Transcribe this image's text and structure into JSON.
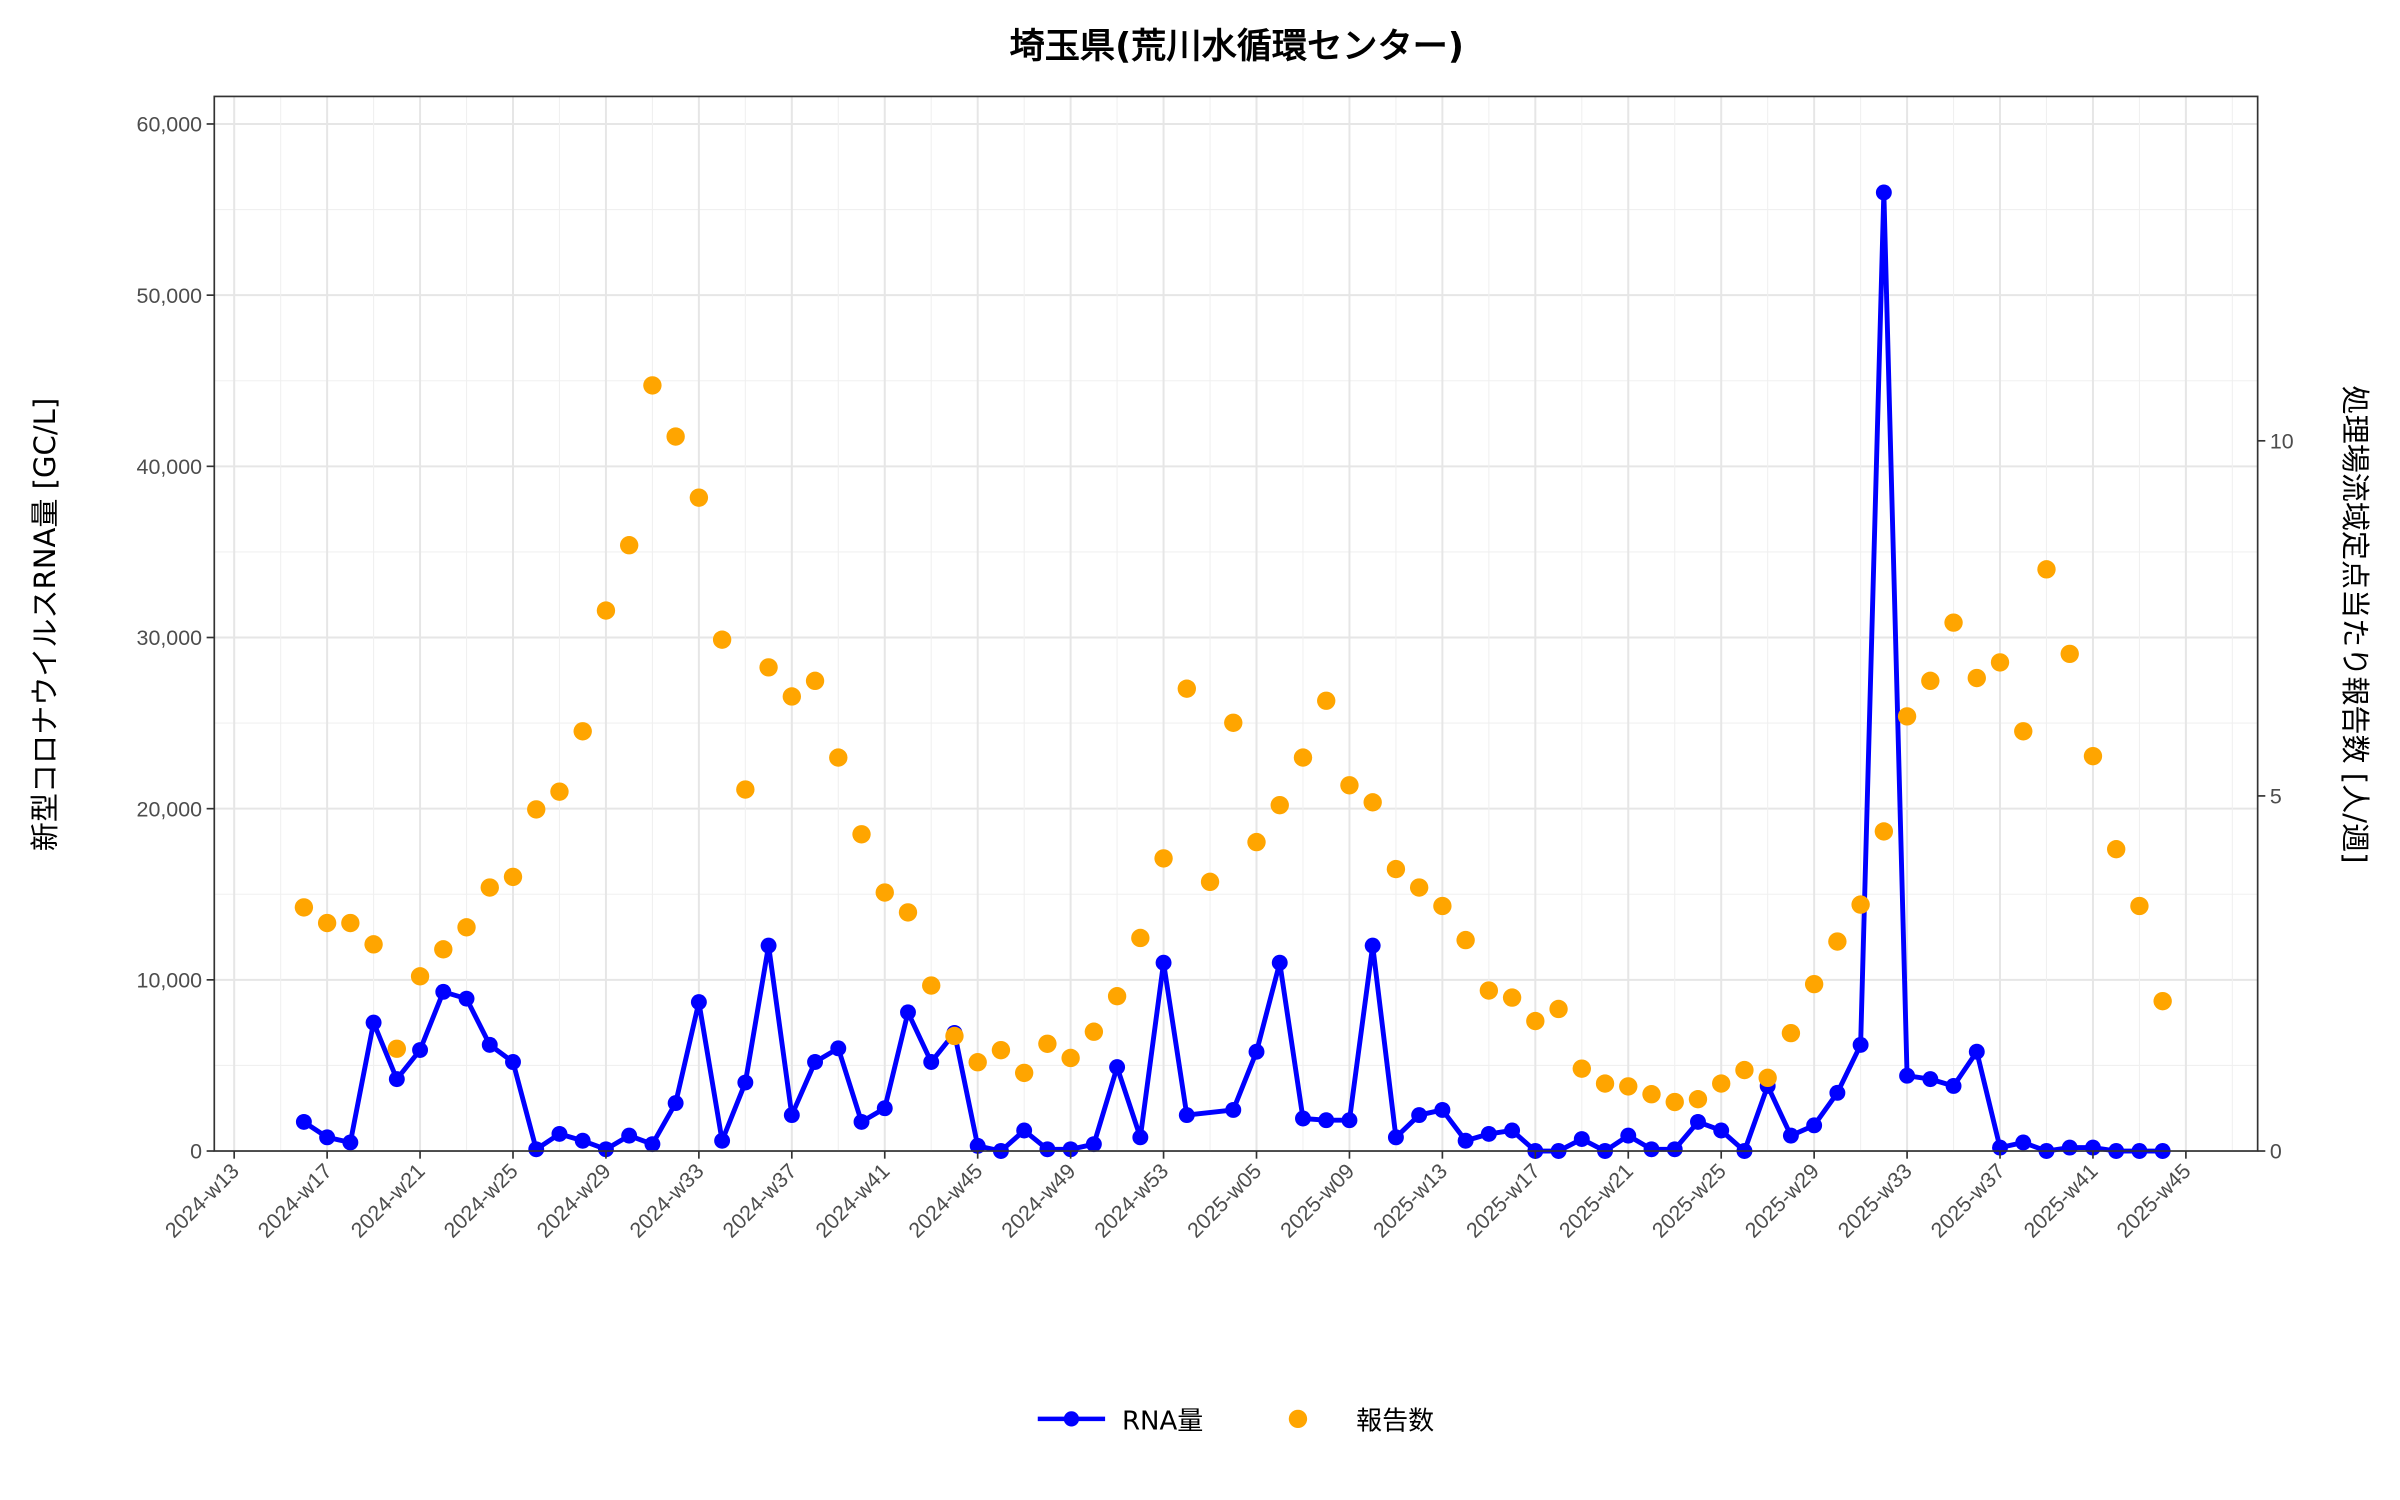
{
  "chart_data": {
    "type": "line",
    "title": "埼玉県(荒川水循環センター)",
    "ylabel": "新型コロナウイルスRNA量 [GC/L]",
    "y2label": "処理場流域定点当たり報告数 [人/週]",
    "xlabel": "",
    "ylim": [
      0,
      60000
    ],
    "y2lim": [
      0,
      13
    ],
    "yticks": [
      "0",
      "10,000",
      "20,000",
      "30,000",
      "40,000",
      "50,000",
      "60,000"
    ],
    "yticks_values": [
      0,
      10000,
      20000,
      30000,
      40000,
      50000,
      60000
    ],
    "y2ticks": [
      "0",
      "5",
      "10"
    ],
    "y2ticks_values": [
      0,
      5,
      10
    ],
    "xticks": [
      "2024-w13",
      "2024-w17",
      "2024-w21",
      "2024-w25",
      "2024-w29",
      "2024-w33",
      "2024-w37",
      "2024-w41",
      "2024-w45",
      "2024-w49",
      "2024-w53",
      "2025-w05",
      "2025-w09",
      "2025-w13",
      "2025-w17",
      "2025-w21",
      "2025-w25",
      "2025-w29",
      "2025-w33",
      "2025-w37",
      "2025-w41",
      "2025-w45"
    ],
    "grid": true,
    "legend_position": "bottom",
    "x": [
      "2024-w16",
      "2024-w17",
      "2024-w18",
      "2024-w19",
      "2024-w20",
      "2024-w21",
      "2024-w22",
      "2024-w23",
      "2024-w24",
      "2024-w25",
      "2024-w26",
      "2024-w27",
      "2024-w28",
      "2024-w29",
      "2024-w30",
      "2024-w31",
      "2024-w32",
      "2024-w33",
      "2024-w34",
      "2024-w35",
      "2024-w36",
      "2024-w37",
      "2024-w38",
      "2024-w39",
      "2024-w40",
      "2024-w41",
      "2024-w42",
      "2024-w43",
      "2024-w44",
      "2024-w45",
      "2024-w46",
      "2024-w47",
      "2024-w48",
      "2024-w49",
      "2024-w50",
      "2024-w51",
      "2024-w52",
      "2024-w53",
      "2025-w01",
      "2025-w02",
      "2025-w03",
      "2025-w04",
      "2025-w05",
      "2025-w06",
      "2025-w07",
      "2025-w08",
      "2025-w09",
      "2025-w10",
      "2025-w11",
      "2025-w12",
      "2025-w13",
      "2025-w14",
      "2025-w15",
      "2025-w16",
      "2025-w17",
      "2025-w18",
      "2025-w19",
      "2025-w20",
      "2025-w21",
      "2025-w22",
      "2025-w23",
      "2025-w24",
      "2025-w25",
      "2025-w26",
      "2025-w27",
      "2025-w28",
      "2025-w29",
      "2025-w30",
      "2025-w31",
      "2025-w32",
      "2025-w33",
      "2025-w34",
      "2025-w35",
      "2025-w36",
      "2025-w37",
      "2025-w38",
      "2025-w39",
      "2025-w40",
      "2025-w41",
      "2025-w42",
      "2025-w43"
    ],
    "series": [
      {
        "name": "RNA量",
        "axis": "left",
        "type": "line+points",
        "color": "#0000ff",
        "values": [
          1700,
          800,
          500,
          7500,
          4200,
          5900,
          9300,
          8900,
          6200,
          5200,
          100,
          1000,
          600,
          100,
          900,
          400,
          2800,
          8700,
          600,
          4000,
          12000,
          2100,
          5200,
          6000,
          1700,
          2500,
          8100,
          5200,
          6900,
          300,
          0,
          1200,
          100,
          100,
          400,
          4900,
          800,
          11000,
          2100,
          null,
          2400,
          5800,
          11000,
          1900,
          1800,
          1800,
          12000,
          800,
          2100,
          2400,
          600,
          1000,
          1200,
          0,
          0,
          700,
          0,
          900,
          100,
          100,
          1700,
          1200,
          0,
          3800,
          900,
          1500,
          3400,
          6200,
          56000,
          4400,
          4200,
          3800,
          5800,
          200,
          500,
          0,
          200,
          200,
          0,
          0,
          0
        ]
      },
      {
        "name": "報告数",
        "axis": "right",
        "type": "points",
        "color": "#ffa500",
        "values": [
          3.43,
          3.21,
          3.21,
          2.91,
          1.44,
          2.46,
          2.84,
          3.15,
          3.71,
          3.86,
          4.81,
          5.06,
          5.91,
          7.61,
          8.53,
          10.78,
          10.06,
          9.2,
          7.2,
          5.09,
          6.81,
          6.4,
          6.62,
          5.54,
          4.46,
          3.64,
          3.36,
          2.33,
          1.62,
          1.25,
          1.42,
          1.1,
          1.51,
          1.31,
          1.68,
          2.18,
          3.0,
          4.12,
          6.51,
          3.79,
          6.03,
          4.35,
          4.87,
          5.54,
          6.34,
          5.15,
          4.91,
          3.97,
          3.71,
          3.45,
          2.97,
          2.26,
          2.16,
          1.83,
          2.0,
          1.16,
          0.95,
          0.91,
          0.8,
          0.69,
          0.73,
          0.95,
          1.14,
          1.03,
          1.66,
          2.35,
          2.95,
          3.47,
          4.5,
          6.12,
          6.62,
          7.44,
          6.66,
          6.88,
          5.91,
          8.19,
          7.0,
          5.56,
          4.25,
          3.45,
          2.11
        ]
      }
    ]
  }
}
